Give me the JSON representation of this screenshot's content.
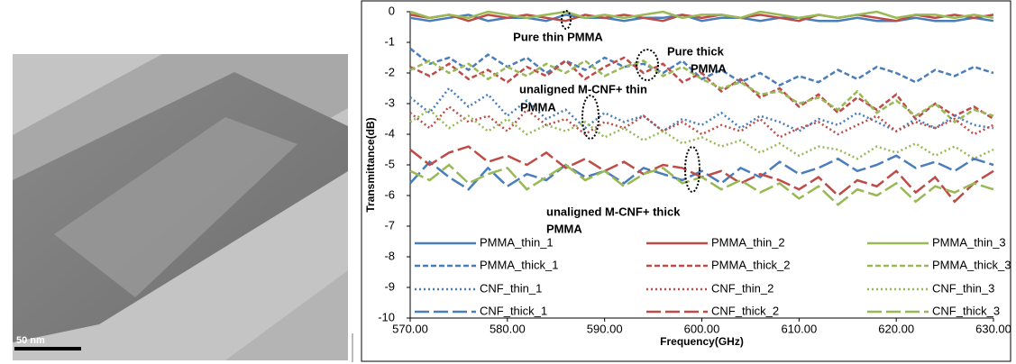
{
  "figure_image": {
    "scale_label": "50 nm"
  },
  "chart_data": {
    "type": "line",
    "x_label": "Frequency(GHz)",
    "y_label": "Transmittance(dB)",
    "x": [
      570,
      572,
      574,
      576,
      578,
      580,
      582,
      584,
      586,
      588,
      590,
      592,
      594,
      596,
      598,
      600,
      602,
      604,
      606,
      608,
      610,
      612,
      614,
      616,
      618,
      620,
      622,
      624,
      626,
      628,
      630
    ],
    "xlim": [
      570,
      630
    ],
    "xticks": [
      {
        "value": 570,
        "label": "570.00"
      },
      {
        "value": 580,
        "label": "580.00"
      },
      {
        "value": 590,
        "label": "590.00"
      },
      {
        "value": 600,
        "label": "600.00"
      },
      {
        "value": 610,
        "label": "610.00"
      },
      {
        "value": 620,
        "label": "620.00"
      },
      {
        "value": 630,
        "label": "630.00"
      }
    ],
    "ylim": [
      -10,
      0
    ],
    "yticks": [
      0,
      -1,
      -2,
      -3,
      -4,
      -5,
      -6,
      -7,
      -8,
      -9,
      -10
    ],
    "legend": "bottom",
    "annotations": [
      [
        "Pure thin PMMA"
      ],
      [
        "Pure thick",
        "PMMA"
      ],
      [
        "unaligned M-CNF+ thin",
        "PMMA"
      ],
      [
        "unaligned M-CNF+ thick",
        "PMMA"
      ]
    ],
    "series": [
      {
        "name": "PMMA_thin_1",
        "color": "#4a7ebb",
        "style": "solid",
        "values": [
          -0.2,
          -0.3,
          -0.2,
          -0.1,
          -0.3,
          -0.2,
          -0.2,
          -0.3,
          -0.1,
          -0.2,
          -0.2,
          -0.3,
          -0.2,
          -0.2,
          -0.1,
          -0.3,
          -0.2,
          -0.2,
          -0.3,
          -0.2,
          -0.2,
          -0.3,
          -0.3,
          -0.2,
          -0.3,
          -0.3,
          -0.2,
          -0.3,
          -0.3,
          -0.2,
          -0.3
        ]
      },
      {
        "name": "PMMA_thin_2",
        "color": "#be4b48",
        "style": "solid",
        "values": [
          -0.1,
          -0.2,
          -0.1,
          -0.3,
          -0.1,
          -0.2,
          -0.1,
          -0.2,
          -0.3,
          -0.1,
          -0.2,
          -0.1,
          -0.2,
          -0.3,
          -0.1,
          -0.2,
          -0.1,
          -0.2,
          -0.1,
          -0.2,
          -0.3,
          -0.1,
          -0.2,
          -0.1,
          -0.2,
          -0.3,
          -0.1,
          -0.2,
          -0.1,
          -0.2,
          -0.1
        ]
      },
      {
        "name": "PMMA_thin_3",
        "color": "#98b954",
        "style": "solid",
        "values": [
          0,
          -0.2,
          -0.1,
          -0.2,
          0,
          -0.1,
          -0.2,
          -0.1,
          0,
          -0.2,
          -0.1,
          -0.2,
          -0.1,
          0,
          -0.2,
          -0.1,
          -0.1,
          -0.2,
          0,
          -0.1,
          -0.2,
          -0.1,
          -0.2,
          -0.1,
          0,
          -0.2,
          -0.1,
          -0.1,
          -0.2,
          -0.1,
          -0.2
        ]
      },
      {
        "name": "PMMA_thick_1",
        "color": "#4a7ebb",
        "style": "dashed",
        "values": [
          -1.2,
          -1.7,
          -1.5,
          -1.9,
          -1.4,
          -1.8,
          -1.5,
          -2.0,
          -1.6,
          -1.9,
          -1.5,
          -1.8,
          -1.7,
          -2.0,
          -1.6,
          -2.2,
          -1.9,
          -2.3,
          -2.0,
          -2.4,
          -2.1,
          -2.3,
          -1.9,
          -2.2,
          -1.8,
          -2.0,
          -2.3,
          -1.9,
          -2.1,
          -1.8,
          -2.0
        ]
      },
      {
        "name": "PMMA_thick_2",
        "color": "#be4b48",
        "style": "dashed",
        "values": [
          -1.8,
          -2.1,
          -1.7,
          -2.2,
          -1.9,
          -2.3,
          -1.8,
          -2.1,
          -1.6,
          -2.2,
          -1.8,
          -1.5,
          -2.0,
          -1.7,
          -2.3,
          -2.0,
          -2.6,
          -2.2,
          -2.8,
          -2.5,
          -3.1,
          -2.7,
          -3.3,
          -2.8,
          -3.2,
          -2.7,
          -3.5,
          -3.0,
          -3.4,
          -3.1,
          -3.5
        ]
      },
      {
        "name": "PMMA_thick_3",
        "color": "#98b954",
        "style": "dashed",
        "values": [
          -1.9,
          -1.6,
          -2.0,
          -1.7,
          -2.2,
          -1.8,
          -2.1,
          -1.7,
          -2.0,
          -1.6,
          -2.1,
          -1.8,
          -1.6,
          -2.1,
          -1.8,
          -2.2,
          -2.5,
          -2.3,
          -2.7,
          -2.6,
          -3.0,
          -2.8,
          -3.2,
          -2.6,
          -3.3,
          -2.9,
          -3.4,
          -3.0,
          -3.6,
          -3.2,
          -3.4
        ]
      },
      {
        "name": "CNF_thin_1",
        "color": "#4a7ebb",
        "style": "dotted",
        "values": [
          -2.8,
          -3.3,
          -2.5,
          -3.1,
          -2.7,
          -3.4,
          -2.9,
          -3.5,
          -3.2,
          -3.8,
          -3.3,
          -3.6,
          -3.4,
          -3.9,
          -3.5,
          -3.7,
          -3.3,
          -3.8,
          -3.4,
          -3.6,
          -3.9,
          -3.5,
          -3.7,
          -3.3,
          -3.6,
          -3.9,
          -3.5,
          -3.8,
          -3.4,
          -3.7,
          -3.8
        ]
      },
      {
        "name": "CNF_thin_2",
        "color": "#be4b48",
        "style": "dotted",
        "values": [
          -3.3,
          -3.8,
          -3.1,
          -3.6,
          -3.4,
          -3.9,
          -3.2,
          -3.7,
          -3.5,
          -4.0,
          -3.6,
          -3.8,
          -3.4,
          -3.9,
          -3.6,
          -4.0,
          -3.7,
          -3.9,
          -3.5,
          -4.1,
          -3.8,
          -3.6,
          -4.0,
          -3.7,
          -3.4,
          -3.9,
          -3.6,
          -3.8,
          -3.5,
          -4.0,
          -3.7
        ]
      },
      {
        "name": "CNF_thin_3",
        "color": "#98b954",
        "style": "dotted",
        "values": [
          -3.6,
          -3.2,
          -3.8,
          -3.4,
          -3.9,
          -3.5,
          -4.0,
          -3.7,
          -3.9,
          -3.6,
          -4.1,
          -3.8,
          -4.2,
          -3.9,
          -4.3,
          -4.1,
          -4.4,
          -4.2,
          -4.6,
          -4.3,
          -4.7,
          -4.4,
          -4.5,
          -4.8,
          -4.4,
          -4.6,
          -4.3,
          -4.7,
          -4.4,
          -4.8,
          -4.5
        ]
      },
      {
        "name": "CNF_thick_1",
        "color": "#4a7ebb",
        "style": "longdash",
        "values": [
          -5.6,
          -4.9,
          -5.4,
          -5.8,
          -5.1,
          -5.7,
          -5.3,
          -5.5,
          -5.0,
          -5.4,
          -5.2,
          -5.6,
          -5.1,
          -5.3,
          -5.5,
          -5.2,
          -5.6,
          -5.1,
          -5.4,
          -4.9,
          -5.3,
          -5.1,
          -4.8,
          -5.2,
          -5.0,
          -4.7,
          -5.1,
          -4.9,
          -5.2,
          -4.8,
          -5.0
        ]
      },
      {
        "name": "CNF_thick_2",
        "color": "#be4b48",
        "style": "longdash",
        "values": [
          -4.5,
          -5.0,
          -4.6,
          -4.4,
          -4.9,
          -4.7,
          -5.0,
          -4.6,
          -5.1,
          -4.8,
          -5.2,
          -4.9,
          -5.3,
          -5.0,
          -5.1,
          -5.4,
          -5.2,
          -5.6,
          -5.3,
          -5.5,
          -5.8,
          -5.4,
          -6.0,
          -5.5,
          -5.7,
          -5.2,
          -5.9,
          -5.4,
          -6.2,
          -5.6,
          -5.2
        ]
      },
      {
        "name": "CNF_thick_3",
        "color": "#98b954",
        "style": "longdash",
        "values": [
          -5.2,
          -5.5,
          -5.0,
          -5.6,
          -5.3,
          -5.1,
          -5.8,
          -5.4,
          -5.0,
          -5.5,
          -5.2,
          -5.7,
          -5.3,
          -5.1,
          -5.6,
          -5.4,
          -5.8,
          -5.5,
          -5.9,
          -5.6,
          -6.1,
          -5.7,
          -6.3,
          -5.8,
          -6.0,
          -5.6,
          -6.2,
          -5.7,
          -5.9,
          -5.6,
          -5.8
        ]
      }
    ]
  }
}
